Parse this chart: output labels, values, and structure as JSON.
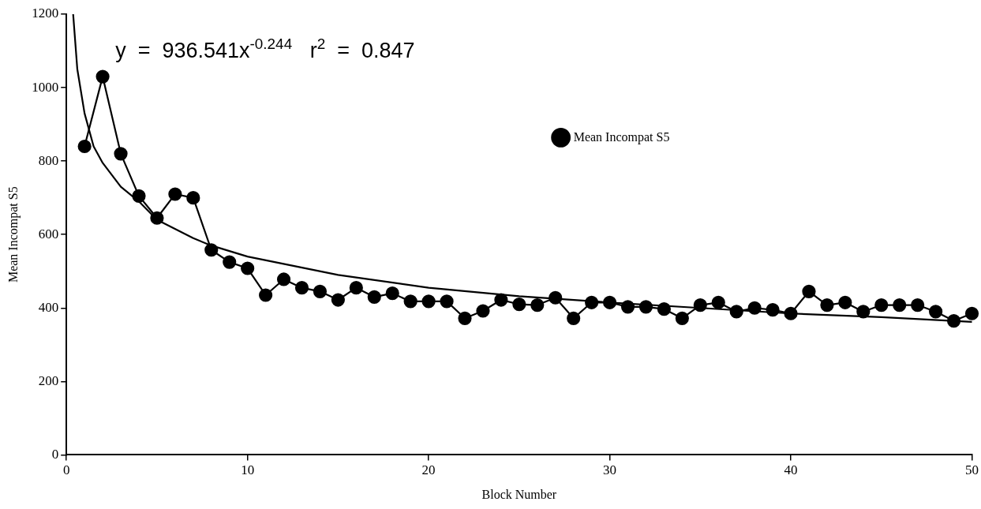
{
  "chart_data": {
    "type": "line",
    "xlabel": "Block Number",
    "ylabel": "Mean Incompat S5",
    "annotations": [
      "y  =  936.541x$^{-0.244}$   r$^{2}$  =  0.847"
    ],
    "x": [
      1,
      2,
      3,
      4,
      5,
      6,
      7,
      8,
      9,
      10,
      11,
      12,
      13,
      14,
      15,
      16,
      17,
      18,
      19,
      20,
      21,
      22,
      23,
      24,
      25,
      26,
      27,
      28,
      29,
      30,
      31,
      32,
      33,
      34,
      35,
      36,
      37,
      38,
      39,
      40,
      41,
      42,
      43,
      44,
      45,
      46,
      47,
      48,
      49,
      50
    ],
    "series": [
      {
        "name": "Mean Incompat S5",
        "color": "#000000",
        "marker": "circle",
        "values": [
          840,
          1030,
          820,
          705,
          645,
          710,
          700,
          558,
          525,
          508,
          435,
          478,
          455,
          445,
          422,
          455,
          430,
          440,
          418,
          418,
          418,
          372,
          392,
          422,
          410,
          408,
          428,
          372,
          415,
          415,
          403,
          403,
          397,
          372,
          408,
          415,
          390,
          400,
          395,
          385,
          445,
          408,
          415,
          390,
          408,
          408,
          408,
          390,
          365,
          385
        ]
      },
      {
        "type": "line",
        "color": "#000000",
        "marker": "none",
        "x": [
          0.37,
          0.6,
          1,
          1.5,
          2,
          3,
          4,
          5,
          7,
          8,
          10,
          15,
          20,
          25,
          30,
          35,
          40,
          45,
          50
        ],
        "values": [
          1200,
          1050,
          930,
          840,
          795,
          730,
          690,
          640,
          590,
          570,
          540,
          490,
          455,
          432,
          415,
          400,
          385,
          375,
          362
        ]
      }
    ],
    "xlim": [
      0,
      50
    ],
    "xticks": [
      0,
      10,
      20,
      30,
      40,
      50
    ],
    "ylim": [
      0,
      1200
    ],
    "yticks": [
      0,
      200,
      400,
      600,
      800,
      1000,
      1200
    ],
    "grid": false,
    "legend": "top right"
  }
}
